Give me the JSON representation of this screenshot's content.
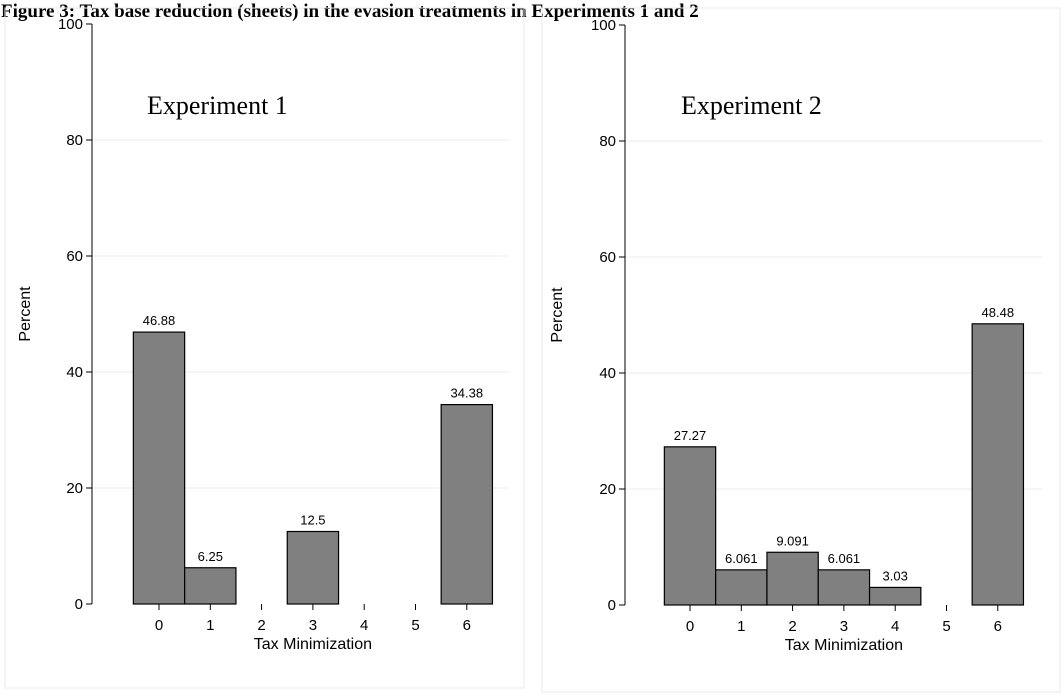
{
  "figure": {
    "title": "Figure 3: Tax base reduction (sheets) in the evasion treatments in Experiments 1 and 2"
  },
  "chart_data": [
    {
      "type": "bar",
      "annotation": "Experiment 1",
      "xlabel": "Tax Minimization",
      "ylabel": "Percent",
      "ylim": [
        0,
        100
      ],
      "yticks": [
        0,
        20,
        40,
        60,
        80,
        100
      ],
      "xticks": [
        0,
        1,
        2,
        3,
        4,
        5,
        6
      ],
      "bars": [
        {
          "x": 0,
          "value": 46.88,
          "label": "46.88"
        },
        {
          "x": 1,
          "value": 6.25,
          "label": "6.25"
        },
        {
          "x": 3,
          "value": 12.5,
          "label": "12.5"
        },
        {
          "x": 6,
          "value": 34.38,
          "label": "34.38"
        }
      ],
      "grid": true,
      "bar_color": "#808080"
    },
    {
      "type": "bar",
      "annotation": "Experiment 2",
      "xlabel": "Tax Minimization",
      "ylabel": "Percent",
      "ylim": [
        0,
        100
      ],
      "yticks": [
        0,
        20,
        40,
        60,
        80,
        100
      ],
      "xticks": [
        0,
        1,
        2,
        3,
        4,
        5,
        6
      ],
      "bars": [
        {
          "x": 0,
          "value": 27.27,
          "label": "27.27"
        },
        {
          "x": 1,
          "value": 6.061,
          "label": "6.061"
        },
        {
          "x": 2,
          "value": 9.091,
          "label": "9.091"
        },
        {
          "x": 3,
          "value": 6.061,
          "label": "6.061"
        },
        {
          "x": 4,
          "value": 3.03,
          "label": "3.03"
        },
        {
          "x": 6,
          "value": 48.48,
          "label": "48.48"
        }
      ],
      "grid": true,
      "bar_color": "#808080"
    }
  ]
}
